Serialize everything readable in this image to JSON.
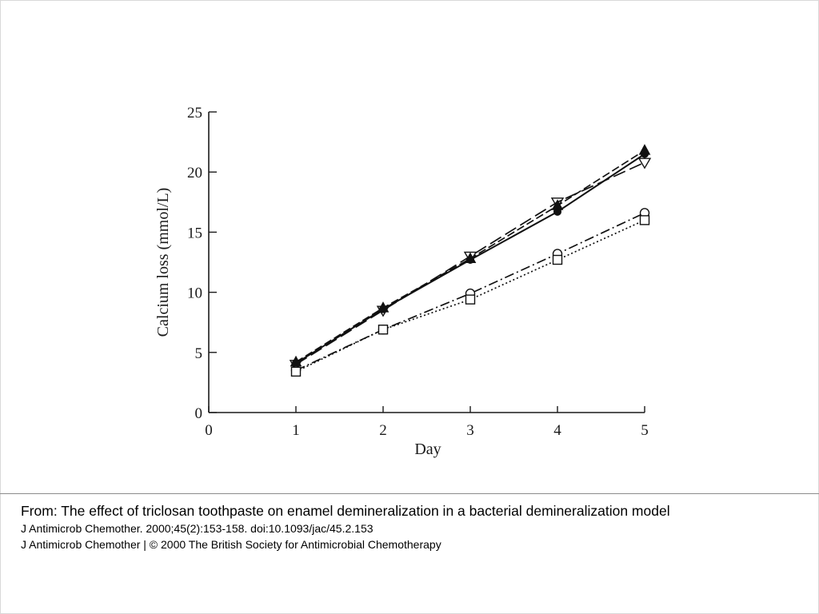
{
  "caption": {
    "title": "From: The effect of triclosan toothpaste on enamel demineralization in a bacterial demineralization model",
    "citation": "J Antimicrob Chemother. 2000;45(2):153-158. doi:10.1093/jac/45.2.153",
    "copyright": "J Antimicrob Chemother | © 2000 The British Society for Antimicrobial Chemotherapy"
  },
  "chart_data": {
    "type": "line",
    "title": "",
    "xlabel": "Day",
    "ylabel": "Calcium loss (mmol/L)",
    "xlim": [
      0,
      5
    ],
    "ylim": [
      0,
      25
    ],
    "x_ticks": [
      0,
      1,
      2,
      3,
      4,
      5
    ],
    "y_ticks": [
      0,
      5,
      10,
      15,
      20,
      25
    ],
    "grid": false,
    "legend": "none",
    "x": [
      1,
      2,
      3,
      4,
      5
    ],
    "series": [
      {
        "marker": "filled-circle",
        "line_style": "solid",
        "color": "#111111",
        "values": [
          4.1,
          8.6,
          12.7,
          16.7,
          21.5
        ]
      },
      {
        "marker": "filled-triangle-up",
        "line_style": "dashed",
        "color": "#111111",
        "values": [
          4.2,
          8.7,
          12.8,
          17.2,
          21.8
        ]
      },
      {
        "marker": "open-triangle-down",
        "line_style": "long-dashed",
        "color": "#111111",
        "values": [
          4.0,
          8.5,
          13.0,
          17.5,
          20.8
        ]
      },
      {
        "marker": "open-circle",
        "line_style": "dash-dot",
        "color": "#111111",
        "values": [
          3.5,
          6.9,
          9.9,
          13.2,
          16.6
        ]
      },
      {
        "marker": "open-square",
        "line_style": "dotted",
        "color": "#111111",
        "values": [
          3.4,
          6.9,
          9.4,
          12.7,
          16.0
        ]
      }
    ]
  }
}
